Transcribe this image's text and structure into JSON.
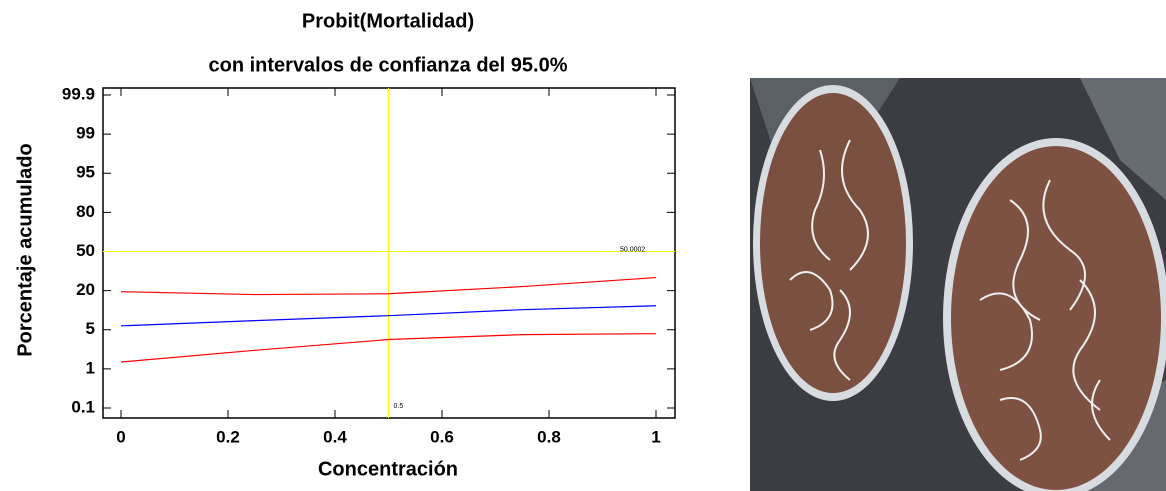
{
  "chart_data": {
    "type": "line",
    "title": "Probit(Mortalidad)",
    "subtitle": "con intervalos de confianza del  95.0%",
    "x_label": "Concentración",
    "y_label": "Porcentaje acumulado",
    "x": [
      0,
      0.25,
      0.5,
      0.75,
      1
    ],
    "series": [
      {
        "color": "#ff0000",
        "values": [
          19.6,
          18.5,
          18.8,
          23.1,
          30
        ]
      },
      {
        "color": "#0000ff",
        "values": [
          6.5,
          8.5,
          10.4,
          12.7,
          14.2
        ]
      },
      {
        "color": "#ff0000",
        "values": [
          1.7,
          2.9,
          4.0,
          4.5,
          4.6
        ]
      }
    ],
    "xlim": [
      0,
      1
    ],
    "xticks": [
      0,
      0.2,
      0.4,
      0.6,
      0.8,
      1
    ],
    "ylim": [
      0.1,
      99.9
    ],
    "yticks": [
      0.1,
      1,
      5,
      20,
      50,
      80,
      95,
      99,
      99.9
    ],
    "y_scale": "probit",
    "crosshair": {
      "x": 0.5,
      "y": 50,
      "color": "#ffff00",
      "x_label": "0.5",
      "y_label": "50.0002"
    }
  }
}
